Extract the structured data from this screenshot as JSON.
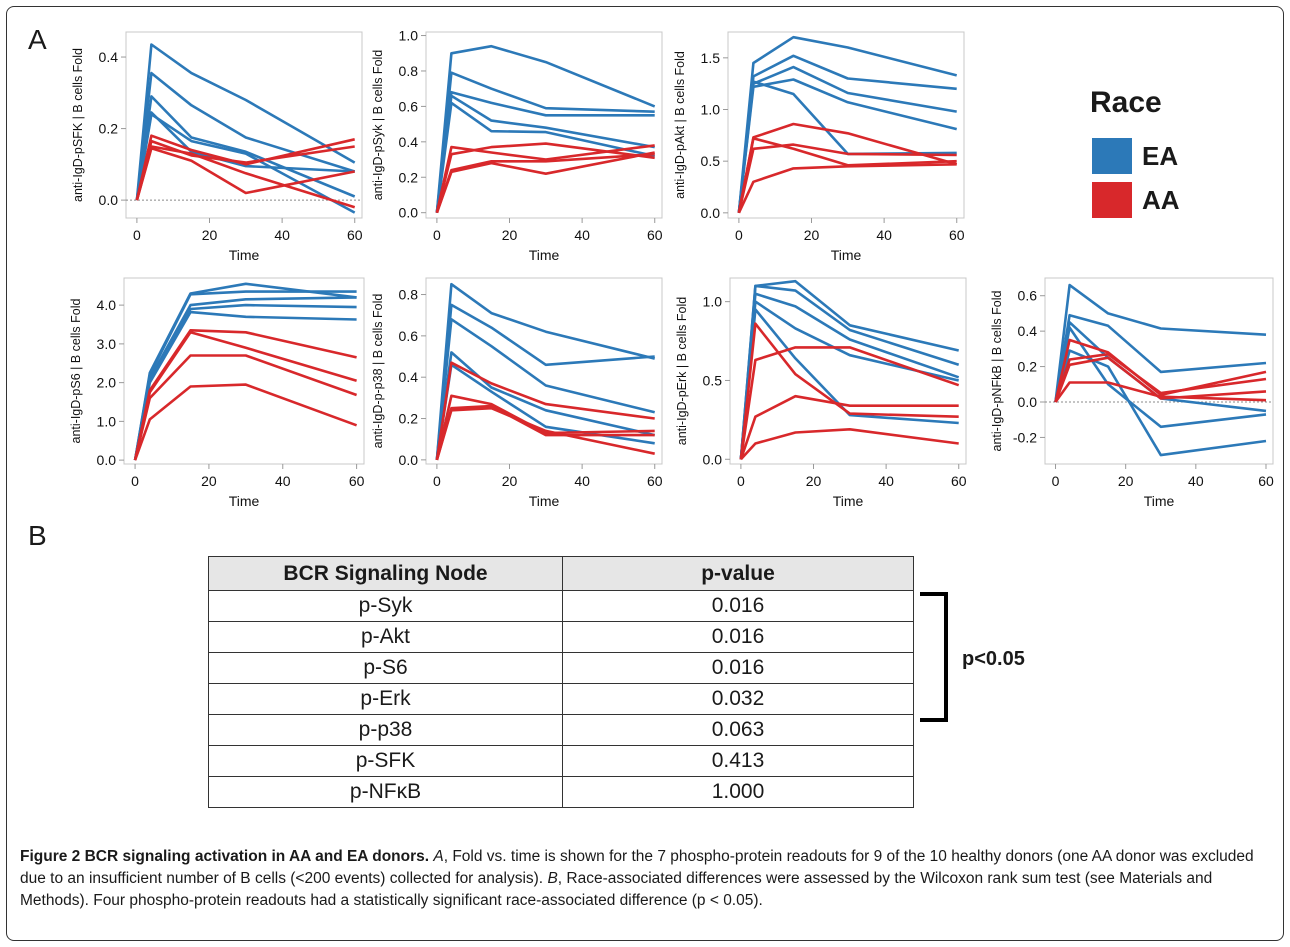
{
  "panels": {
    "a": "A",
    "b": "B"
  },
  "legend": {
    "title": "Race",
    "entries": [
      {
        "label": "EA",
        "color": "#2c79b8"
      },
      {
        "label": "AA",
        "color": "#d8282b"
      }
    ]
  },
  "chart_data": [
    {
      "type": "line",
      "ylabel": "anti-IgD-pSFK | B cells Fold",
      "xlabel": "Time",
      "x": [
        0,
        4,
        15,
        30,
        60
      ],
      "xticks": [
        "0",
        "20",
        "40",
        "60"
      ],
      "ylim": [
        -0.05,
        0.47
      ],
      "yticks": [
        "0.0",
        "0.2",
        "0.4"
      ],
      "zero_line": true,
      "series": [
        {
          "group": "EA",
          "values": [
            0,
            0.435,
            0.355,
            0.28,
            0.105
          ]
        },
        {
          "group": "EA",
          "values": [
            0,
            0.355,
            0.265,
            0.175,
            0.08
          ]
        },
        {
          "group": "EA",
          "values": [
            0,
            0.29,
            0.175,
            0.135,
            0.01
          ]
        },
        {
          "group": "EA",
          "values": [
            0,
            0.24,
            0.165,
            0.13,
            -0.035
          ]
        },
        {
          "group": "EA",
          "values": [
            0,
            0.245,
            0.135,
            0.095,
            0.08
          ]
        },
        {
          "group": "AA",
          "values": [
            0,
            0.18,
            0.14,
            0.1,
            0.17
          ]
        },
        {
          "group": "AA",
          "values": [
            0,
            0.165,
            0.125,
            0.105,
            0.15
          ]
        },
        {
          "group": "AA",
          "values": [
            0,
            0.145,
            0.11,
            0.02,
            0.08
          ]
        },
        {
          "group": "AA",
          "values": [
            0,
            0.15,
            0.13,
            0.075,
            -0.02
          ]
        }
      ]
    },
    {
      "type": "line",
      "ylabel": "anti-IgD-pSyk | B cells Fold",
      "xlabel": "Time",
      "x": [
        0,
        4,
        15,
        30,
        60
      ],
      "xticks": [
        "0",
        "20",
        "40",
        "60"
      ],
      "ylim": [
        -0.03,
        1.02
      ],
      "yticks": [
        "0.0",
        "0.2",
        "0.4",
        "0.6",
        "0.8",
        "1.0"
      ],
      "zero_line": false,
      "series": [
        {
          "group": "EA",
          "values": [
            0,
            0.9,
            0.94,
            0.85,
            0.6
          ]
        },
        {
          "group": "EA",
          "values": [
            0,
            0.79,
            0.7,
            0.59,
            0.57
          ]
        },
        {
          "group": "EA",
          "values": [
            0,
            0.68,
            0.62,
            0.55,
            0.55
          ]
        },
        {
          "group": "EA",
          "values": [
            0,
            0.66,
            0.52,
            0.48,
            0.37
          ]
        },
        {
          "group": "EA",
          "values": [
            0,
            0.62,
            0.46,
            0.455,
            0.32
          ]
        },
        {
          "group": "AA",
          "values": [
            0,
            0.37,
            0.34,
            0.3,
            0.38
          ]
        },
        {
          "group": "AA",
          "values": [
            0,
            0.33,
            0.37,
            0.39,
            0.31
          ]
        },
        {
          "group": "AA",
          "values": [
            0,
            0.24,
            0.29,
            0.29,
            0.33
          ]
        },
        {
          "group": "AA",
          "values": [
            0,
            0.23,
            0.28,
            0.22,
            0.34
          ]
        }
      ]
    },
    {
      "type": "line",
      "ylabel": "anti-IgD-pAkt | B cells Fold",
      "xlabel": "Time",
      "x": [
        0,
        4,
        15,
        30,
        60
      ],
      "xticks": [
        "0",
        "20",
        "40",
        "60"
      ],
      "ylim": [
        -0.05,
        1.75
      ],
      "yticks": [
        "0.0",
        "0.5",
        "1.0",
        "1.5"
      ],
      "zero_line": false,
      "series": [
        {
          "group": "EA",
          "values": [
            0,
            1.45,
            1.7,
            1.6,
            1.33
          ]
        },
        {
          "group": "EA",
          "values": [
            0,
            1.32,
            1.52,
            1.3,
            1.2
          ]
        },
        {
          "group": "EA",
          "values": [
            0,
            1.25,
            1.41,
            1.16,
            0.98
          ]
        },
        {
          "group": "EA",
          "values": [
            0,
            1.22,
            1.29,
            1.07,
            0.81
          ]
        },
        {
          "group": "EA",
          "values": [
            0,
            1.27,
            1.15,
            0.57,
            0.58
          ]
        },
        {
          "group": "AA",
          "values": [
            0,
            0.73,
            0.86,
            0.77,
            0.47
          ]
        },
        {
          "group": "AA",
          "values": [
            0,
            0.62,
            0.66,
            0.57,
            0.56
          ]
        },
        {
          "group": "AA",
          "values": [
            0,
            0.72,
            0.62,
            0.46,
            0.5
          ]
        },
        {
          "group": "AA",
          "values": [
            0,
            0.3,
            0.43,
            0.45,
            0.47
          ]
        }
      ]
    },
    {
      "type": "line",
      "ylabel": "anti-IgD-pS6 | B cells Fold",
      "xlabel": "Time",
      "x": [
        0,
        4,
        15,
        30,
        60
      ],
      "xticks": [
        "0",
        "20",
        "40",
        "60"
      ],
      "ylim": [
        -0.1,
        4.7
      ],
      "yticks": [
        "0.0",
        "1.0",
        "2.0",
        "3.0",
        "4.0"
      ],
      "zero_line": false,
      "series": [
        {
          "group": "EA",
          "values": [
            0,
            2.25,
            4.3,
            4.55,
            4.2
          ]
        },
        {
          "group": "EA",
          "values": [
            0,
            2.2,
            4.28,
            4.35,
            4.35
          ]
        },
        {
          "group": "EA",
          "values": [
            0,
            2.1,
            4.0,
            4.15,
            4.2
          ]
        },
        {
          "group": "EA",
          "values": [
            0,
            2.05,
            3.9,
            4.0,
            3.95
          ]
        },
        {
          "group": "EA",
          "values": [
            0,
            2.0,
            3.82,
            3.7,
            3.63
          ]
        },
        {
          "group": "AA",
          "values": [
            0,
            1.8,
            3.35,
            3.3,
            2.65
          ]
        },
        {
          "group": "AA",
          "values": [
            0,
            1.75,
            3.3,
            2.9,
            2.05
          ]
        },
        {
          "group": "AA",
          "values": [
            0,
            1.6,
            2.7,
            2.7,
            1.68
          ]
        },
        {
          "group": "AA",
          "values": [
            0,
            1.05,
            1.9,
            1.95,
            0.9
          ]
        }
      ]
    },
    {
      "type": "line",
      "ylabel": "anti-IgD-p-p38 | B cells Fold",
      "xlabel": "Time",
      "x": [
        0,
        4,
        15,
        30,
        60
      ],
      "xticks": [
        "0",
        "20",
        "40",
        "60"
      ],
      "ylim": [
        -0.02,
        0.88
      ],
      "yticks": [
        "0.0",
        "0.2",
        "0.4",
        "0.6",
        "0.8"
      ],
      "zero_line": false,
      "series": [
        {
          "group": "EA",
          "values": [
            0,
            0.85,
            0.71,
            0.62,
            0.49
          ]
        },
        {
          "group": "EA",
          "values": [
            0,
            0.75,
            0.64,
            0.46,
            0.5
          ]
        },
        {
          "group": "EA",
          "values": [
            0,
            0.68,
            0.55,
            0.36,
            0.23
          ]
        },
        {
          "group": "EA",
          "values": [
            0,
            0.52,
            0.35,
            0.24,
            0.12
          ]
        },
        {
          "group": "EA",
          "values": [
            0,
            0.46,
            0.33,
            0.16,
            0.08
          ]
        },
        {
          "group": "AA",
          "values": [
            0,
            0.47,
            0.37,
            0.27,
            0.2
          ]
        },
        {
          "group": "AA",
          "values": [
            0,
            0.31,
            0.27,
            0.13,
            0.14
          ]
        },
        {
          "group": "AA",
          "values": [
            0,
            0.25,
            0.26,
            0.12,
            0.12
          ]
        },
        {
          "group": "AA",
          "values": [
            0,
            0.24,
            0.25,
            0.14,
            0.03
          ]
        }
      ]
    },
    {
      "type": "line",
      "ylabel": "anti-IgD-pErk | B cells Fold",
      "xlabel": "Time",
      "x": [
        0,
        4,
        15,
        30,
        60
      ],
      "xticks": [
        "0",
        "20",
        "40",
        "60"
      ],
      "ylim": [
        -0.03,
        1.15
      ],
      "yticks": [
        "0.0",
        "0.5",
        "1.0"
      ],
      "zero_line": false,
      "series": [
        {
          "group": "EA",
          "values": [
            0,
            1.1,
            1.13,
            0.85,
            0.69
          ]
        },
        {
          "group": "EA",
          "values": [
            0,
            1.1,
            1.07,
            0.82,
            0.6
          ]
        },
        {
          "group": "EA",
          "values": [
            0,
            1.05,
            0.97,
            0.76,
            0.52
          ]
        },
        {
          "group": "EA",
          "values": [
            0,
            1.0,
            0.83,
            0.66,
            0.5
          ]
        },
        {
          "group": "EA",
          "values": [
            0,
            0.95,
            0.64,
            0.28,
            0.23
          ]
        },
        {
          "group": "AA",
          "values": [
            0,
            0.86,
            0.54,
            0.29,
            0.27
          ]
        },
        {
          "group": "AA",
          "values": [
            0,
            0.63,
            0.71,
            0.71,
            0.47
          ]
        },
        {
          "group": "AA",
          "values": [
            0,
            0.27,
            0.4,
            0.34,
            0.34
          ]
        },
        {
          "group": "AA",
          "values": [
            0,
            0.1,
            0.17,
            0.19,
            0.1
          ]
        }
      ]
    },
    {
      "type": "line",
      "ylabel": "anti-IgD-pNFkB | B cells Fold",
      "xlabel": "Time",
      "x": [
        0,
        4,
        15,
        30,
        60
      ],
      "xticks": [
        "0",
        "20",
        "40",
        "60"
      ],
      "ylim": [
        -0.35,
        0.7
      ],
      "yticks": [
        "-0.2",
        "0.0",
        "0.2",
        "0.4",
        "0.6"
      ],
      "zero_line": true,
      "series": [
        {
          "group": "EA",
          "values": [
            0,
            0.66,
            0.5,
            0.415,
            0.38
          ]
        },
        {
          "group": "EA",
          "values": [
            0,
            0.49,
            0.43,
            0.17,
            0.22
          ]
        },
        {
          "group": "EA",
          "values": [
            0,
            0.45,
            0.25,
            0.02,
            -0.05
          ]
        },
        {
          "group": "EA",
          "values": [
            0,
            0.42,
            0.1,
            -0.14,
            -0.07
          ]
        },
        {
          "group": "EA",
          "values": [
            0,
            0.29,
            0.2,
            -0.3,
            -0.22
          ]
        },
        {
          "group": "AA",
          "values": [
            0,
            0.35,
            0.28,
            0.04,
            0.17
          ]
        },
        {
          "group": "AA",
          "values": [
            0,
            0.24,
            0.27,
            0.05,
            0.13
          ]
        },
        {
          "group": "AA",
          "values": [
            0,
            0.21,
            0.25,
            0.02,
            0.06
          ]
        },
        {
          "group": "AA",
          "values": [
            0,
            0.11,
            0.11,
            0.03,
            0.01
          ]
        }
      ]
    }
  ],
  "table": {
    "headers": [
      "BCR Signaling Node",
      "p-value"
    ],
    "rows": [
      [
        "p-Syk",
        "0.016"
      ],
      [
        "p-Akt",
        "0.016"
      ],
      [
        "p-S6",
        "0.016"
      ],
      [
        "p-Erk",
        "0.032"
      ],
      [
        "p-p38",
        "0.063"
      ],
      [
        "p-SFK",
        "0.413"
      ],
      [
        "p-NFκB",
        "1.000"
      ]
    ],
    "significance_label": "p<0.05"
  },
  "caption": {
    "title": "Figure 2 BCR signaling activation in AA and EA donors.",
    "a_label": "A",
    "a_text": ", Fold vs. time is shown for the 7 phospho-protein readouts for 9 of the 10 healthy donors (one AA donor was excluded due to an insufficient number of B cells (<200 events) collected for analysis). ",
    "b_label": "B",
    "b_text": ", Race-associated differences were assessed by the Wilcoxon rank sum test (see Materials and Methods). Four phospho-protein readouts had a statistically significant race-associated difference (p < 0.05)."
  }
}
